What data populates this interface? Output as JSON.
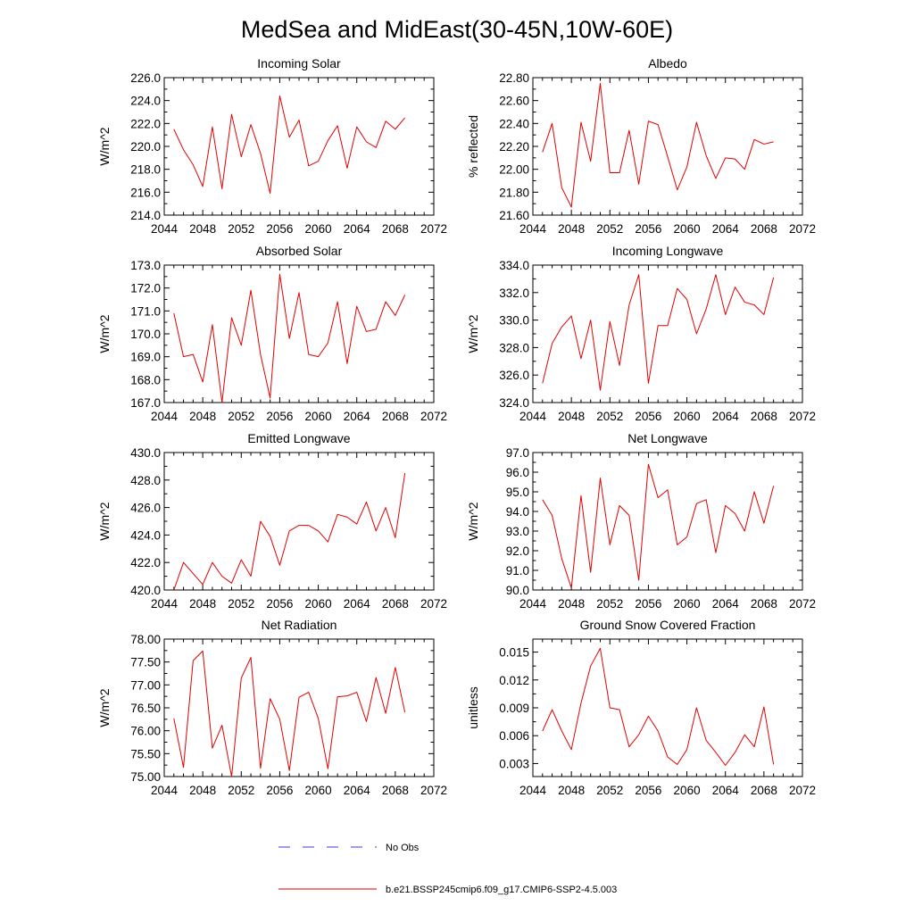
{
  "figure": {
    "title": "MedSea and MidEast(30-45N,10W-60E)"
  },
  "legend": {
    "items": [
      {
        "label": "No Obs",
        "color": "#3b3bd9",
        "dash": true
      },
      {
        "label": "b.e21.BSSP245cmip6.f09_g17.CMIP6-SSP2-4.5.003",
        "color": "#e00000",
        "dash": false
      }
    ]
  },
  "chart_data": [
    {
      "type": "line",
      "title": "Incoming Solar",
      "ylabel": "W/m^2",
      "xlim": [
        2044,
        2072
      ],
      "xticks": [
        2044,
        2048,
        2052,
        2056,
        2060,
        2064,
        2068,
        2072
      ],
      "xtick_labels": [
        "2044",
        "2048",
        "2052",
        "2056",
        "2060",
        "2064",
        "2068",
        "2072"
      ],
      "ylim": [
        214,
        226
      ],
      "yticks": [
        214,
        216,
        218,
        220,
        222,
        224,
        226
      ],
      "ytick_labels": [
        "214.0",
        "216.0",
        "218.0",
        "220.0",
        "222.0",
        "224.0",
        "226.0"
      ],
      "series": [
        {
          "name": "b.e21.BSSP245cmip6.f09_g17.CMIP6-SSP2-4.5.003",
          "color": "#e00000",
          "x": [
            2045,
            2046,
            2047,
            2048,
            2049,
            2050,
            2051,
            2052,
            2053,
            2054,
            2055,
            2056,
            2057,
            2058,
            2059,
            2060,
            2061,
            2062,
            2063,
            2064,
            2065,
            2066,
            2067,
            2068,
            2069
          ],
          "values": [
            221.5,
            219.7,
            218.4,
            216.5,
            221.7,
            216.3,
            222.8,
            219.1,
            221.9,
            219.4,
            215.9,
            224.4,
            220.8,
            222.3,
            218.3,
            218.7,
            220.5,
            221.8,
            218.1,
            221.7,
            220.4,
            219.9,
            222.2,
            221.5,
            222.5
          ]
        }
      ]
    },
    {
      "type": "line",
      "title": "Albedo",
      "ylabel": "% reflected",
      "xlim": [
        2044,
        2072
      ],
      "xticks": [
        2044,
        2048,
        2052,
        2056,
        2060,
        2064,
        2068,
        2072
      ],
      "xtick_labels": [
        "2044",
        "2048",
        "2052",
        "2056",
        "2060",
        "2064",
        "2068",
        "2072"
      ],
      "ylim": [
        21.6,
        22.8
      ],
      "yticks": [
        21.6,
        21.8,
        22.0,
        22.2,
        22.4,
        22.6,
        22.8
      ],
      "ytick_labels": [
        "21.60",
        "21.80",
        "22.00",
        "22.20",
        "22.40",
        "22.60",
        "22.80"
      ],
      "series": [
        {
          "name": "b.e21.BSSP245cmip6.f09_g17.CMIP6-SSP2-4.5.003",
          "color": "#e00000",
          "x": [
            2045,
            2046,
            2047,
            2048,
            2049,
            2050,
            2051,
            2052,
            2053,
            2054,
            2055,
            2056,
            2057,
            2058,
            2059,
            2060,
            2061,
            2062,
            2063,
            2064,
            2065,
            2066,
            2067,
            2068,
            2069
          ],
          "values": [
            22.15,
            22.4,
            21.84,
            21.67,
            22.41,
            22.07,
            22.75,
            21.97,
            21.97,
            22.34,
            21.87,
            22.42,
            22.39,
            22.11,
            21.82,
            22.02,
            22.41,
            22.12,
            21.92,
            22.1,
            22.09,
            22.0,
            22.26,
            22.22,
            22.24
          ]
        }
      ]
    },
    {
      "type": "line",
      "title": "Absorbed Solar",
      "ylabel": "W/m^2",
      "xlim": [
        2044,
        2072
      ],
      "xticks": [
        2044,
        2048,
        2052,
        2056,
        2060,
        2064,
        2068,
        2072
      ],
      "xtick_labels": [
        "2044",
        "2048",
        "2052",
        "2056",
        "2060",
        "2064",
        "2068",
        "2072"
      ],
      "ylim": [
        167,
        173
      ],
      "yticks": [
        167,
        168,
        169,
        170,
        171,
        172,
        173
      ],
      "ytick_labels": [
        "167.0",
        "168.0",
        "169.0",
        "170.0",
        "171.0",
        "172.0",
        "173.0"
      ],
      "series": [
        {
          "name": "b.e21.BSSP245cmip6.f09_g17.CMIP6-SSP2-4.5.003",
          "color": "#e00000",
          "x": [
            2045,
            2046,
            2047,
            2048,
            2049,
            2050,
            2051,
            2052,
            2053,
            2054,
            2055,
            2056,
            2057,
            2058,
            2059,
            2060,
            2061,
            2062,
            2063,
            2064,
            2065,
            2066,
            2067,
            2068,
            2069
          ],
          "values": [
            170.9,
            169.0,
            169.1,
            167.9,
            170.4,
            167.0,
            170.7,
            169.5,
            171.9,
            169.1,
            167.2,
            172.6,
            169.8,
            171.8,
            169.1,
            169.0,
            169.6,
            171.4,
            168.7,
            171.2,
            170.1,
            170.2,
            171.4,
            170.8,
            171.7
          ]
        }
      ]
    },
    {
      "type": "line",
      "title": "Incoming Longwave",
      "ylabel": "W/m^2",
      "xlim": [
        2044,
        2072
      ],
      "xticks": [
        2044,
        2048,
        2052,
        2056,
        2060,
        2064,
        2068,
        2072
      ],
      "xtick_labels": [
        "2044",
        "2048",
        "2052",
        "2056",
        "2060",
        "2064",
        "2068",
        "2072"
      ],
      "ylim": [
        324,
        334
      ],
      "yticks": [
        324,
        326,
        328,
        330,
        332,
        334
      ],
      "ytick_labels": [
        "324.0",
        "326.0",
        "328.0",
        "330.0",
        "332.0",
        "334.0"
      ],
      "series": [
        {
          "name": "b.e21.BSSP245cmip6.f09_g17.CMIP6-SSP2-4.5.003",
          "color": "#e00000",
          "x": [
            2045,
            2046,
            2047,
            2048,
            2049,
            2050,
            2051,
            2052,
            2053,
            2054,
            2055,
            2056,
            2057,
            2058,
            2059,
            2060,
            2061,
            2062,
            2063,
            2064,
            2065,
            2066,
            2067,
            2068,
            2069
          ],
          "values": [
            325.4,
            328.3,
            329.5,
            330.3,
            327.2,
            330.0,
            324.9,
            329.9,
            326.7,
            331.1,
            333.3,
            325.4,
            329.6,
            329.6,
            332.3,
            331.5,
            329.0,
            330.8,
            333.3,
            330.4,
            332.4,
            331.3,
            331.1,
            330.4,
            333.1
          ]
        }
      ]
    },
    {
      "type": "line",
      "title": "Emitted Longwave",
      "ylabel": "W/m^2",
      "xlim": [
        2044,
        2072
      ],
      "xticks": [
        2044,
        2048,
        2052,
        2056,
        2060,
        2064,
        2068,
        2072
      ],
      "xtick_labels": [
        "2044",
        "2048",
        "2052",
        "2056",
        "2060",
        "2064",
        "2068",
        "2072"
      ],
      "ylim": [
        420,
        430
      ],
      "yticks": [
        420,
        422,
        424,
        426,
        428,
        430
      ],
      "ytick_labels": [
        "420.0",
        "422.0",
        "424.0",
        "426.0",
        "428.0",
        "430.0"
      ],
      "series": [
        {
          "name": "b.e21.BSSP245cmip6.f09_g17.CMIP6-SSP2-4.5.003",
          "color": "#e00000",
          "x": [
            2045,
            2046,
            2047,
            2048,
            2049,
            2050,
            2051,
            2052,
            2053,
            2054,
            2055,
            2056,
            2057,
            2058,
            2059,
            2060,
            2061,
            2062,
            2063,
            2064,
            2065,
            2066,
            2067,
            2068,
            2069
          ],
          "values": [
            420.0,
            422.0,
            421.2,
            420.4,
            422.0,
            421.0,
            420.5,
            422.2,
            421.0,
            425.0,
            423.9,
            421.8,
            424.3,
            424.7,
            424.7,
            424.3,
            423.5,
            425.5,
            425.3,
            424.8,
            426.4,
            424.3,
            426.0,
            423.8,
            428.5
          ]
        }
      ]
    },
    {
      "type": "line",
      "title": "Net Longwave",
      "ylabel": "W/m^2",
      "xlim": [
        2044,
        2072
      ],
      "xticks": [
        2044,
        2048,
        2052,
        2056,
        2060,
        2064,
        2068,
        2072
      ],
      "xtick_labels": [
        "2044",
        "2048",
        "2052",
        "2056",
        "2060",
        "2064",
        "2068",
        "2072"
      ],
      "ylim": [
        90,
        97
      ],
      "yticks": [
        90,
        91,
        92,
        93,
        94,
        95,
        96,
        97
      ],
      "ytick_labels": [
        "90.0",
        "91.0",
        "92.0",
        "93.0",
        "94.0",
        "95.0",
        "96.0",
        "97.0"
      ],
      "series": [
        {
          "name": "b.e21.BSSP245cmip6.f09_g17.CMIP6-SSP2-4.5.003",
          "color": "#e00000",
          "x": [
            2045,
            2046,
            2047,
            2048,
            2049,
            2050,
            2051,
            2052,
            2053,
            2054,
            2055,
            2056,
            2057,
            2058,
            2059,
            2060,
            2061,
            2062,
            2063,
            2064,
            2065,
            2066,
            2067,
            2068,
            2069
          ],
          "values": [
            94.6,
            93.8,
            91.6,
            90.1,
            94.8,
            90.9,
            95.7,
            92.3,
            94.3,
            93.8,
            90.5,
            96.4,
            94.7,
            95.1,
            92.3,
            92.7,
            94.4,
            94.6,
            91.9,
            94.3,
            93.9,
            93.0,
            95.0,
            93.4,
            95.3
          ]
        }
      ]
    },
    {
      "type": "line",
      "title": "Net Radiation",
      "ylabel": "W/m^2",
      "xlim": [
        2044,
        2072
      ],
      "xticks": [
        2044,
        2048,
        2052,
        2056,
        2060,
        2064,
        2068,
        2072
      ],
      "xtick_labels": [
        "2044",
        "2048",
        "2052",
        "2056",
        "2060",
        "2064",
        "2068",
        "2072"
      ],
      "ylim": [
        75,
        78
      ],
      "yticks": [
        75,
        75.5,
        76,
        76.5,
        77,
        77.5,
        78
      ],
      "ytick_labels": [
        "75.00",
        "75.50",
        "76.00",
        "76.50",
        "77.00",
        "77.50",
        "78.00"
      ],
      "series": [
        {
          "name": "b.e21.BSSP245cmip6.f09_g17.CMIP6-SSP2-4.5.003",
          "color": "#e00000",
          "x": [
            2045,
            2046,
            2047,
            2048,
            2049,
            2050,
            2051,
            2052,
            2053,
            2054,
            2055,
            2056,
            2057,
            2058,
            2059,
            2060,
            2061,
            2062,
            2063,
            2064,
            2065,
            2066,
            2067,
            2068,
            2069
          ],
          "values": [
            76.27,
            75.2,
            77.53,
            77.74,
            75.62,
            76.12,
            75.0,
            77.15,
            77.6,
            75.18,
            76.7,
            76.25,
            75.13,
            76.73,
            76.84,
            76.27,
            75.17,
            76.74,
            76.76,
            76.84,
            76.2,
            77.16,
            76.38,
            77.38,
            76.4
          ]
        }
      ]
    },
    {
      "type": "line",
      "title": "Ground Snow Covered Fraction",
      "ylabel": "unitless",
      "xlim": [
        2044,
        2072
      ],
      "xticks": [
        2044,
        2048,
        2052,
        2056,
        2060,
        2064,
        2068,
        2072
      ],
      "xtick_labels": [
        "2044",
        "2048",
        "2052",
        "2056",
        "2060",
        "2064",
        "2068",
        "2072"
      ],
      "ylim": [
        0.0016,
        0.0164
      ],
      "yticks": [
        0.003,
        0.006,
        0.009,
        0.012,
        0.015
      ],
      "ytick_labels": [
        "0.003",
        "0.006",
        "0.009",
        "0.012",
        "0.015"
      ],
      "series": [
        {
          "name": "b.e21.BSSP245cmip6.f09_g17.CMIP6-SSP2-4.5.003",
          "color": "#e00000",
          "x": [
            2045,
            2046,
            2047,
            2048,
            2049,
            2050,
            2051,
            2052,
            2053,
            2054,
            2055,
            2056,
            2057,
            2058,
            2059,
            2060,
            2061,
            2062,
            2063,
            2064,
            2065,
            2066,
            2067,
            2068,
            2069
          ],
          "values": [
            0.0065,
            0.0088,
            0.0065,
            0.0045,
            0.0095,
            0.0135,
            0.0154,
            0.009,
            0.0088,
            0.0048,
            0.0061,
            0.0081,
            0.0065,
            0.0037,
            0.0029,
            0.0045,
            0.009,
            0.0055,
            0.0042,
            0.0028,
            0.0042,
            0.0061,
            0.0048,
            0.0091,
            0.0029
          ]
        }
      ]
    }
  ]
}
